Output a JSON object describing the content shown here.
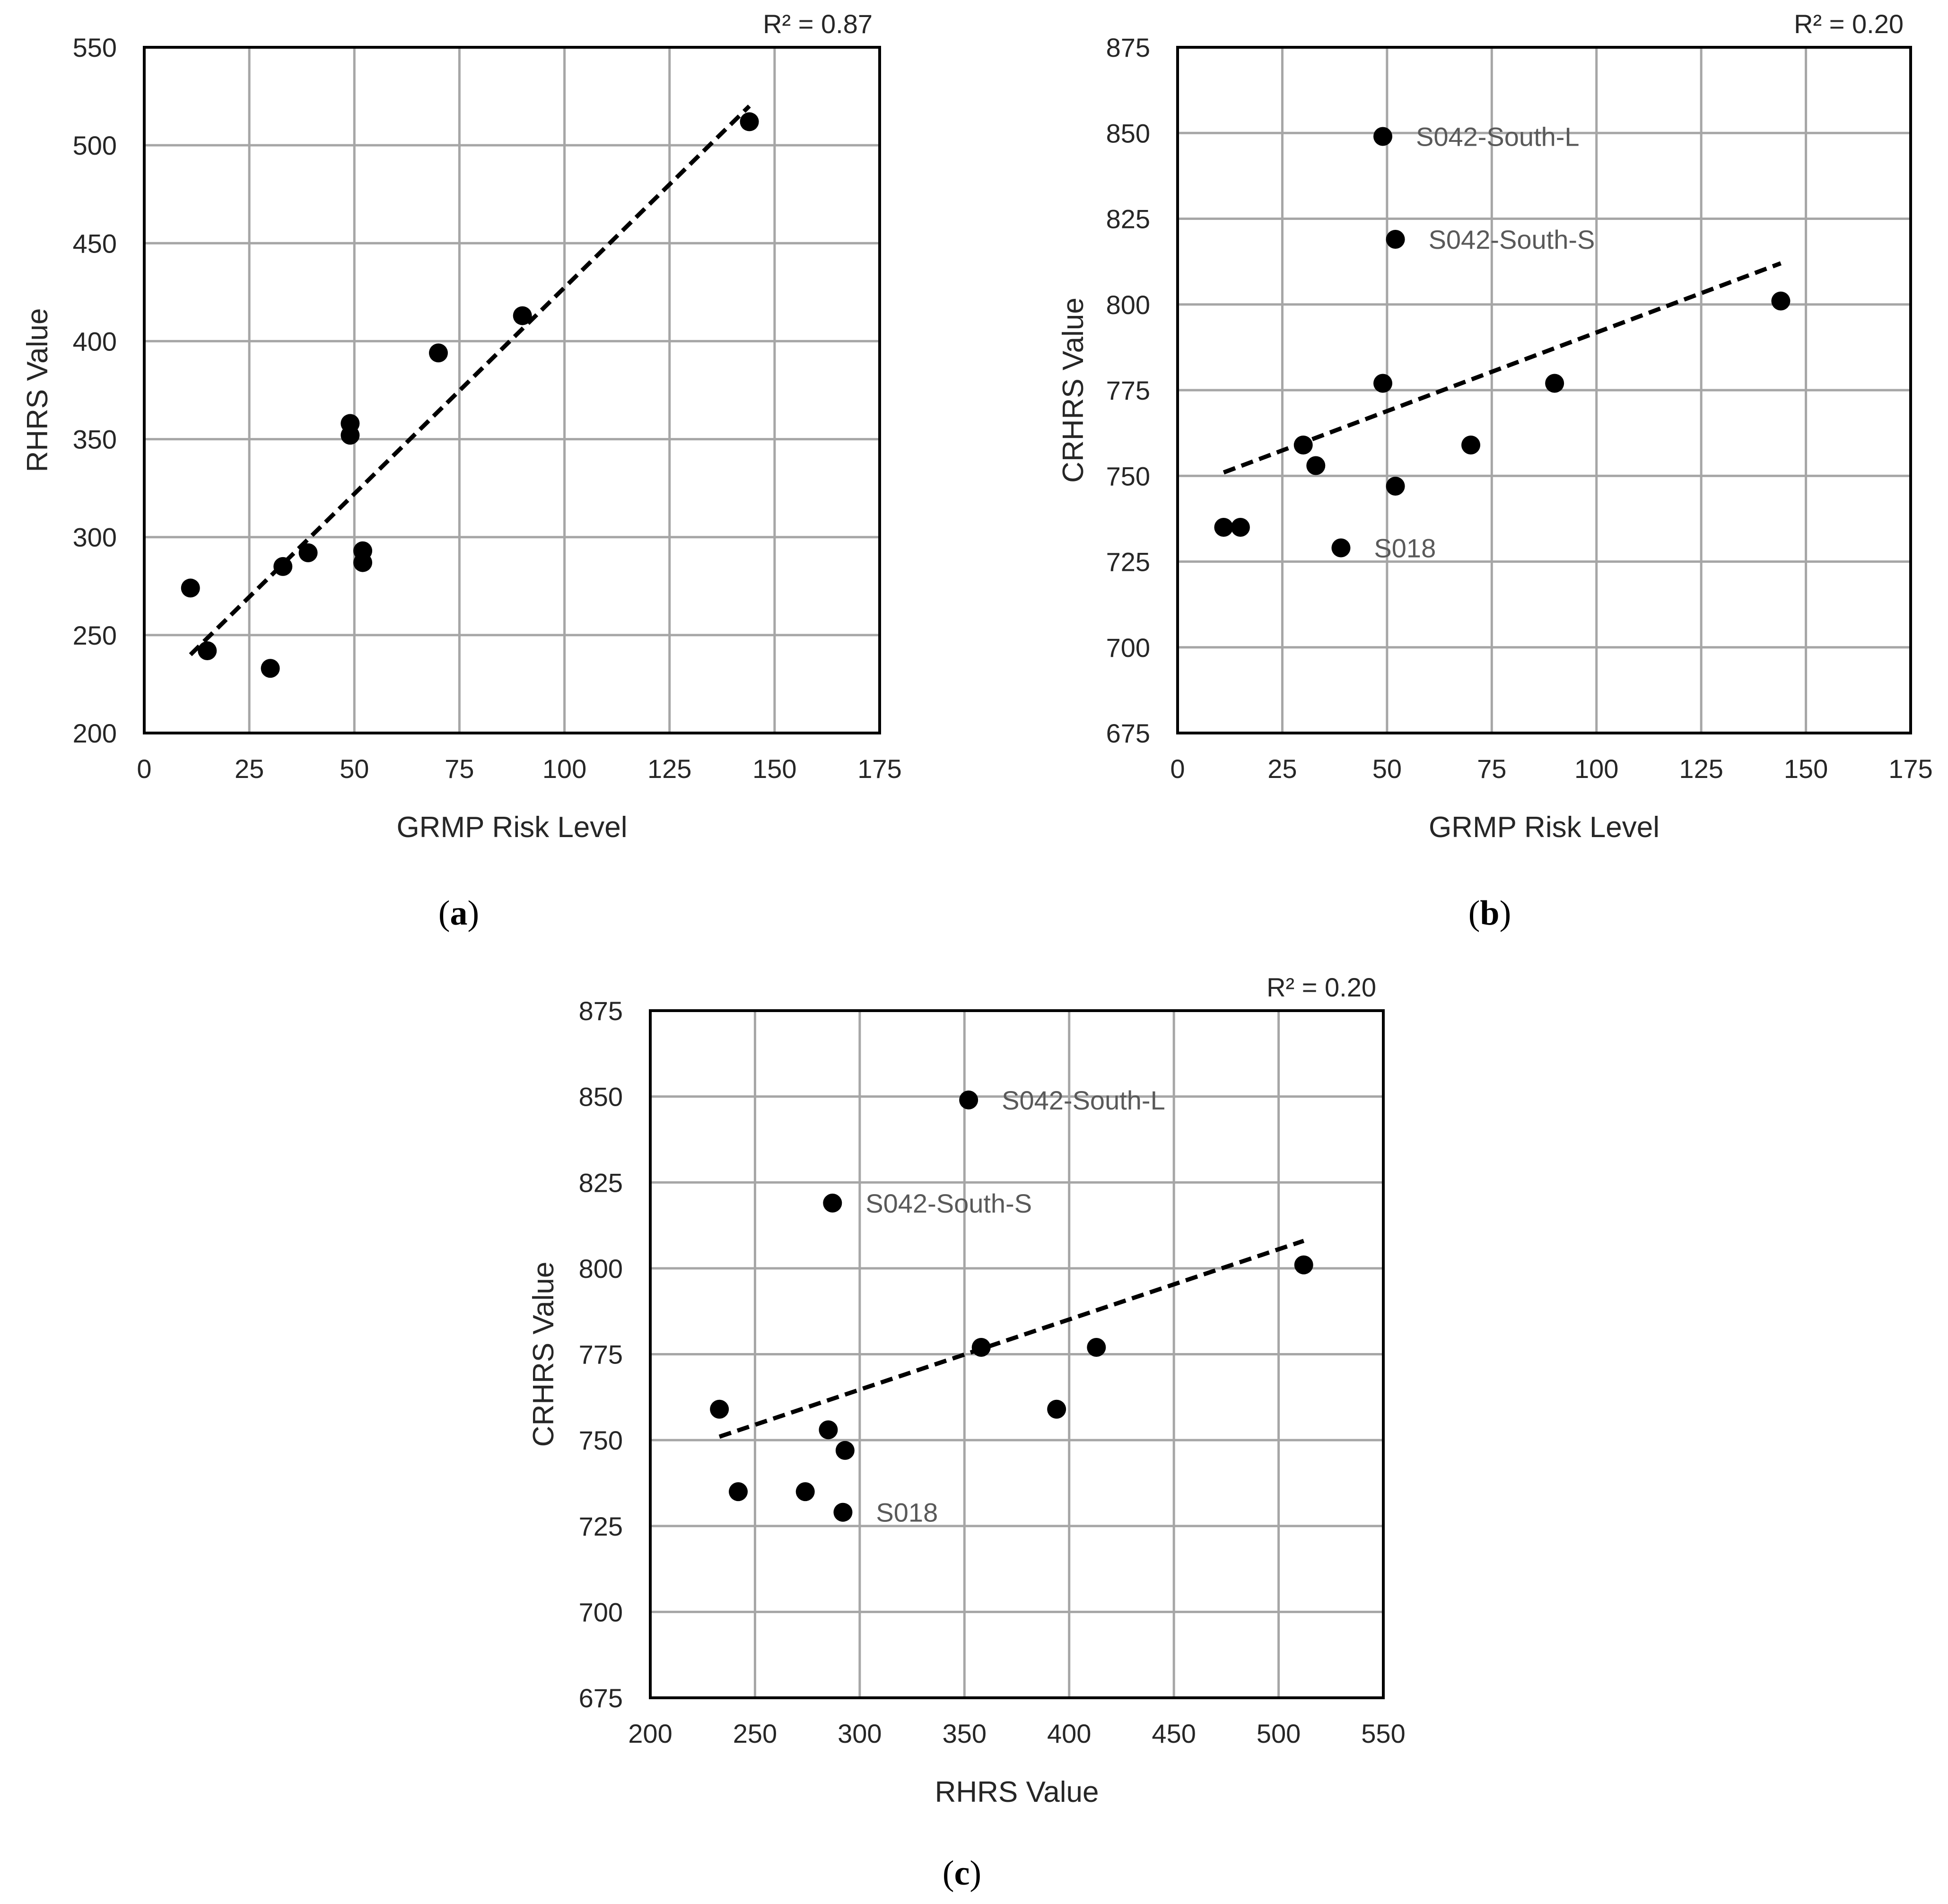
{
  "figure": {
    "panels": [
      {
        "caption": {
          "open": "(",
          "letter": "a",
          "close": ")"
        }
      },
      {
        "caption": {
          "open": "(",
          "letter": "b",
          "close": ")"
        }
      },
      {
        "caption": {
          "open": "(",
          "letter": "c",
          "close": ")"
        }
      }
    ]
  },
  "chart_data": [
    {
      "type": "scatter",
      "title": "",
      "xlabel": "GRMP Risk Level",
      "ylabel": "RHRS Value",
      "xlim": [
        0,
        175
      ],
      "ylim": [
        200,
        550
      ],
      "xticks": [
        0,
        25,
        50,
        75,
        100,
        125,
        150,
        175
      ],
      "yticks": [
        200,
        250,
        300,
        350,
        400,
        450,
        500,
        550
      ],
      "x_tick_labels": [
        "0",
        "25",
        "50",
        "75",
        "100",
        "125",
        "150",
        "175"
      ],
      "y_tick_labels": [
        "200",
        "250",
        "300",
        "350",
        "400",
        "450",
        "500",
        "550"
      ],
      "grid": true,
      "r2_label": "R² = 0.87",
      "points": [
        {
          "x": 11,
          "y": 274
        },
        {
          "x": 15,
          "y": 242
        },
        {
          "x": 30,
          "y": 233
        },
        {
          "x": 33,
          "y": 285
        },
        {
          "x": 39,
          "y": 292
        },
        {
          "x": 49,
          "y": 358
        },
        {
          "x": 49,
          "y": 352
        },
        {
          "x": 52,
          "y": 293
        },
        {
          "x": 52,
          "y": 287
        },
        {
          "x": 70,
          "y": 394
        },
        {
          "x": 90,
          "y": 413
        },
        {
          "x": 144,
          "y": 512
        }
      ],
      "trendline": {
        "style": "dashed",
        "from": {
          "x": 11,
          "y": 240
        },
        "to": {
          "x": 144,
          "y": 520
        }
      },
      "annotations": []
    },
    {
      "type": "scatter",
      "title": "",
      "xlabel": "GRMP Risk Level",
      "ylabel": "CRHRS Value",
      "xlim": [
        0,
        175
      ],
      "ylim": [
        675,
        875
      ],
      "xticks": [
        0,
        25,
        50,
        75,
        100,
        125,
        150,
        175
      ],
      "yticks": [
        675,
        700,
        725,
        750,
        775,
        800,
        825,
        850,
        875
      ],
      "x_tick_labels": [
        "0",
        "25",
        "50",
        "75",
        "100",
        "125",
        "150",
        "175"
      ],
      "y_tick_labels": [
        "675",
        "700",
        "725",
        "750",
        "775",
        "800",
        "825",
        "850",
        "875"
      ],
      "grid": true,
      "r2_label": "R² = 0.20",
      "points": [
        {
          "x": 11,
          "y": 735
        },
        {
          "x": 15,
          "y": 735
        },
        {
          "x": 30,
          "y": 759
        },
        {
          "x": 33,
          "y": 753
        },
        {
          "x": 39,
          "y": 729
        },
        {
          "x": 49,
          "y": 777
        },
        {
          "x": 49,
          "y": 849
        },
        {
          "x": 52,
          "y": 819
        },
        {
          "x": 52,
          "y": 747
        },
        {
          "x": 70,
          "y": 759
        },
        {
          "x": 90,
          "y": 777
        },
        {
          "x": 144,
          "y": 801
        }
      ],
      "trendline": {
        "style": "dashed",
        "from": {
          "x": 11,
          "y": 751
        },
        "to": {
          "x": 144,
          "y": 812
        }
      },
      "annotations": [
        {
          "text": "S042-South-L",
          "x": 49,
          "y": 849
        },
        {
          "text": "S042-South-S",
          "x": 52,
          "y": 819
        },
        {
          "text": "S018",
          "x": 39,
          "y": 729
        }
      ]
    },
    {
      "type": "scatter",
      "title": "",
      "xlabel": "RHRS Value",
      "ylabel": "CRHRS Value",
      "xlim": [
        200,
        550
      ],
      "ylim": [
        675,
        875
      ],
      "xticks": [
        200,
        250,
        300,
        350,
        400,
        450,
        500,
        550
      ],
      "yticks": [
        675,
        700,
        725,
        750,
        775,
        800,
        825,
        850,
        875
      ],
      "x_tick_labels": [
        "200",
        "250",
        "300",
        "350",
        "400",
        "450",
        "500",
        "550"
      ],
      "y_tick_labels": [
        "675",
        "700",
        "725",
        "750",
        "775",
        "800",
        "825",
        "850",
        "875"
      ],
      "grid": true,
      "r2_label": "R² = 0.20",
      "points": [
        {
          "x": 233,
          "y": 759
        },
        {
          "x": 242,
          "y": 735
        },
        {
          "x": 274,
          "y": 735
        },
        {
          "x": 285,
          "y": 753
        },
        {
          "x": 287,
          "y": 819
        },
        {
          "x": 292,
          "y": 729
        },
        {
          "x": 293,
          "y": 747
        },
        {
          "x": 352,
          "y": 849
        },
        {
          "x": 358,
          "y": 777
        },
        {
          "x": 394,
          "y": 759
        },
        {
          "x": 413,
          "y": 777
        },
        {
          "x": 512,
          "y": 801
        }
      ],
      "trendline": {
        "style": "dashed",
        "from": {
          "x": 233,
          "y": 751
        },
        "to": {
          "x": 512,
          "y": 808
        }
      },
      "annotations": [
        {
          "text": "S042-South-L",
          "x": 352,
          "y": 849
        },
        {
          "text": "S042-South-S",
          "x": 287,
          "y": 819
        },
        {
          "text": "S018",
          "x": 292,
          "y": 729
        }
      ]
    }
  ]
}
